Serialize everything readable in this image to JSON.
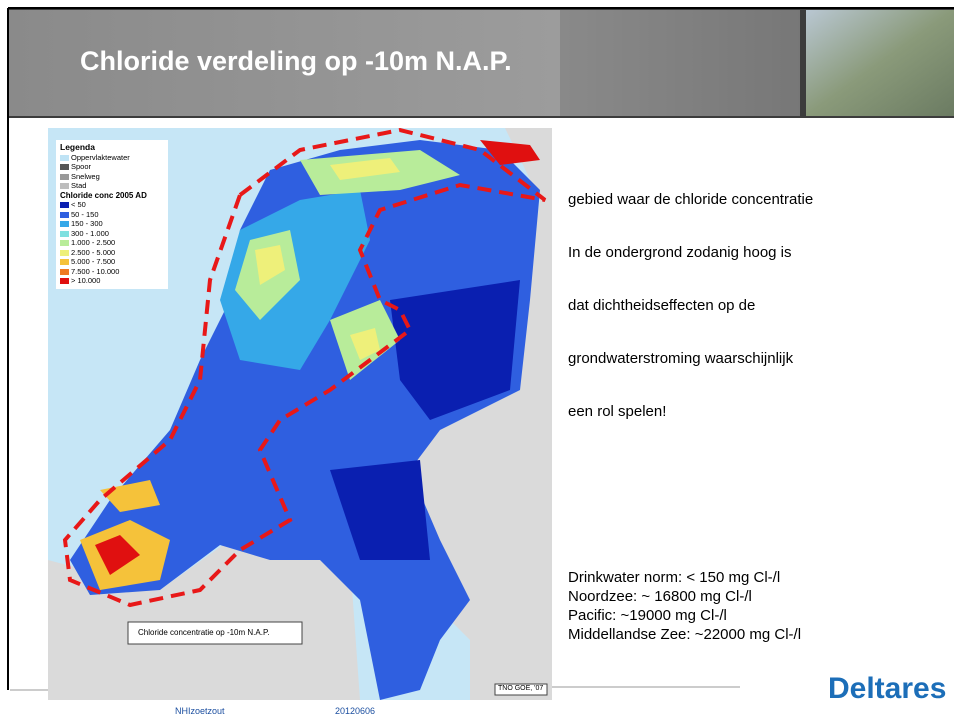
{
  "header": {
    "title": "Chloride verdeling op -10m N.A.P."
  },
  "map": {
    "legend": {
      "title": "Legenda",
      "items": [
        {
          "label": "Oppervlaktewater",
          "color": "#bfe3f5"
        },
        {
          "label": "Spoor",
          "color": "#555555"
        },
        {
          "label": "Snelweg",
          "color": "#999999"
        },
        {
          "label": "Stad",
          "color": "#bdbdbd"
        }
      ],
      "subtitle": "Chloride conc 2005 AD",
      "classes": [
        {
          "label": "< 50",
          "color": "#0a1fb0"
        },
        {
          "label": "50 - 150",
          "color": "#2f5fe0"
        },
        {
          "label": "150 - 300",
          "color": "#35a8e8"
        },
        {
          "label": "300 - 1.000",
          "color": "#7fe0e0"
        },
        {
          "label": "1.000 - 2.500",
          "color": "#b8ec9a"
        },
        {
          "label": "2.500 - 5.000",
          "color": "#eef07a"
        },
        {
          "label": "5.000 - 7.500",
          "color": "#f5c23a"
        },
        {
          "label": "7.500 - 10.000",
          "color": "#ef7a22"
        },
        {
          "label": "> 10.000",
          "color": "#e01010"
        }
      ]
    },
    "caption": "Chloride concentratie op -10m N.A.P.",
    "credit": "TNO GOE, '07"
  },
  "body": {
    "lines": [
      "gebied waar de chloride concentratie",
      "In de ondergrond zodanig hoog is",
      "dat dichtheidseffecten op de",
      "grondwaterstroming waarschijnlijk",
      "een rol spelen!"
    ],
    "facts": [
      "Drinkwater norm: < 150 mg Cl-/l",
      "Noordzee: ~ 16800 mg Cl-/l",
      "Pacific: ~19000 mg Cl-/l",
      "Middellandse Zee: ~22000 mg Cl-/l"
    ]
  },
  "logo": "Deltares",
  "footer": {
    "left": "NHIzoetzout",
    "right": "20120606"
  }
}
